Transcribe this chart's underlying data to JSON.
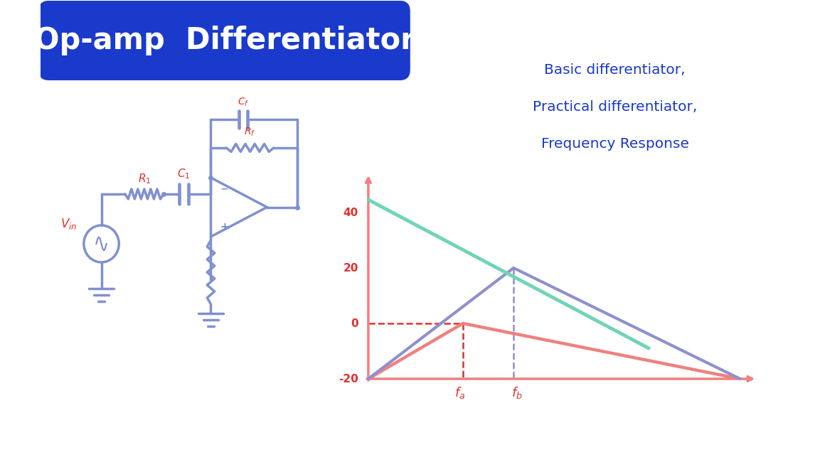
{
  "bg_color": "#ffffff",
  "title_text": "Op-amp  Differentiator",
  "title_bg": "#1a3acc",
  "title_text_color": "#ffffff",
  "circuit_color": "#8090d0",
  "label_color": "#e03030",
  "graph_axis_color": "#f08080",
  "graph_line1_color": "#70d4b8",
  "graph_line2_color": "#9090cc",
  "info_text_color": "#1a3acc",
  "info_text": [
    "Basic differentiator,",
    "Practical differentiator,",
    "Frequency Response"
  ],
  "graph_labels_y": [
    "40",
    "20",
    "0",
    "-20"
  ]
}
